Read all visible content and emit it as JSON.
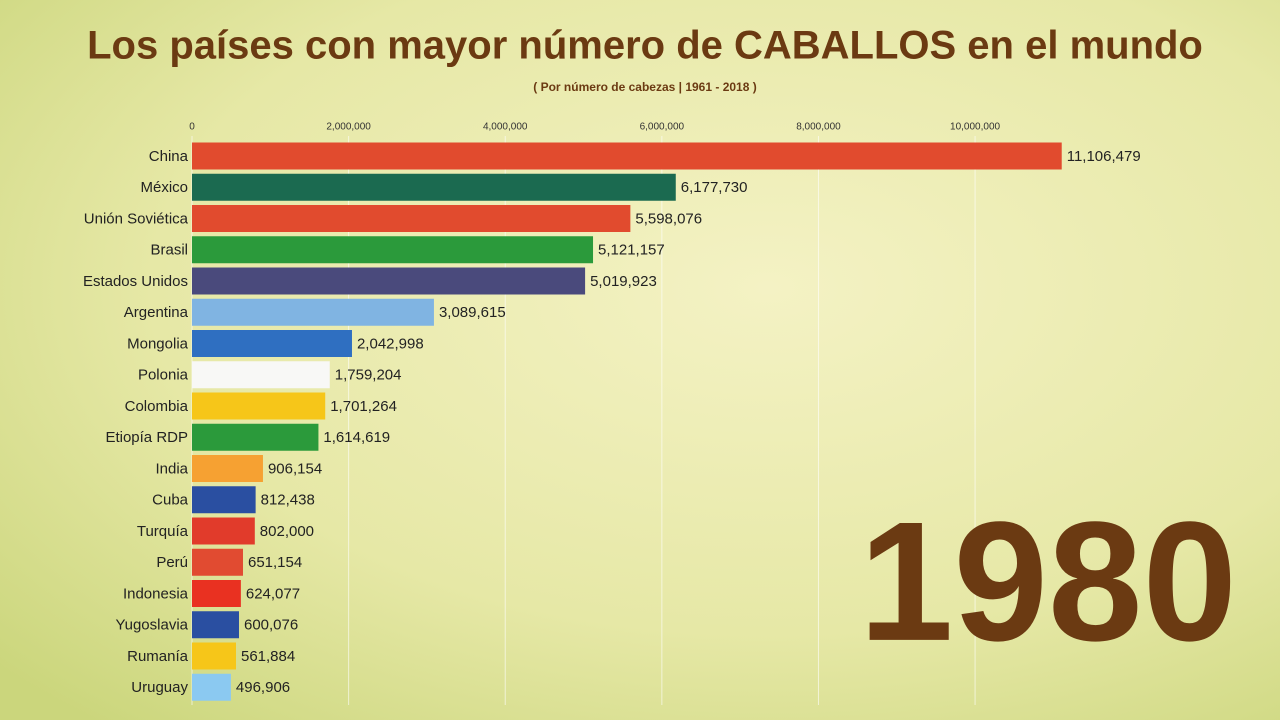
{
  "chart_data": {
    "type": "bar",
    "title": "Los países con mayor número de CABALLOS en el mundo",
    "subtitle": "( Por número de cabezas | 1961 - 2018 )",
    "annotation": "1980",
    "categories": [
      "China",
      "México",
      "Unión Soviética",
      "Brasil",
      "Estados Unidos",
      "Argentina",
      "Mongolia",
      "Polonia",
      "Colombia",
      "Etiopía RDP",
      "India",
      "Cuba",
      "Turquía",
      "Perú",
      "Indonesia",
      "Yugoslavia",
      "Rumanía",
      "Uruguay"
    ],
    "values": [
      11106479,
      6177730,
      5598076,
      5121157,
      5019923,
      3089615,
      2042998,
      1759204,
      1701264,
      1614619,
      906154,
      812438,
      802000,
      651154,
      624077,
      600076,
      561884,
      496906
    ],
    "value_labels": [
      "11,106,479",
      "6,177,730",
      "5,598,076",
      "5,121,157",
      "5,019,923",
      "3,089,615",
      "2,042,998",
      "1,759,204",
      "1,701,264",
      "1,614,619",
      "906,154",
      "812,438",
      "802,000",
      "651,154",
      "624,077",
      "600,076",
      "561,884",
      "496,906"
    ],
    "colors": [
      "#e14b2e",
      "#1b6a50",
      "#e14b2e",
      "#2b9a3b",
      "#4a4a7c",
      "#80b4e2",
      "#2f6fc1",
      "#f8f8f6",
      "#f6c619",
      "#2b9a3b",
      "#f6a132",
      "#2a4fa1",
      "#e13b2b",
      "#e14b31",
      "#e93121",
      "#2a4fa1",
      "#f6c619",
      "#8bc9f1"
    ],
    "xlim": [
      0,
      13000000
    ],
    "xticks": [
      0,
      {
        "value": 2000000,
        "label": "2,000,000"
      },
      {
        "value": 4000000,
        "label": "4,000,000"
      },
      {
        "value": 6000000,
        "label": "6,000,000"
      },
      {
        "value": 8000000,
        "label": "8,000,000"
      },
      {
        "value": 10000000,
        "label": "10,000,000"
      }
    ],
    "grid": true
  }
}
